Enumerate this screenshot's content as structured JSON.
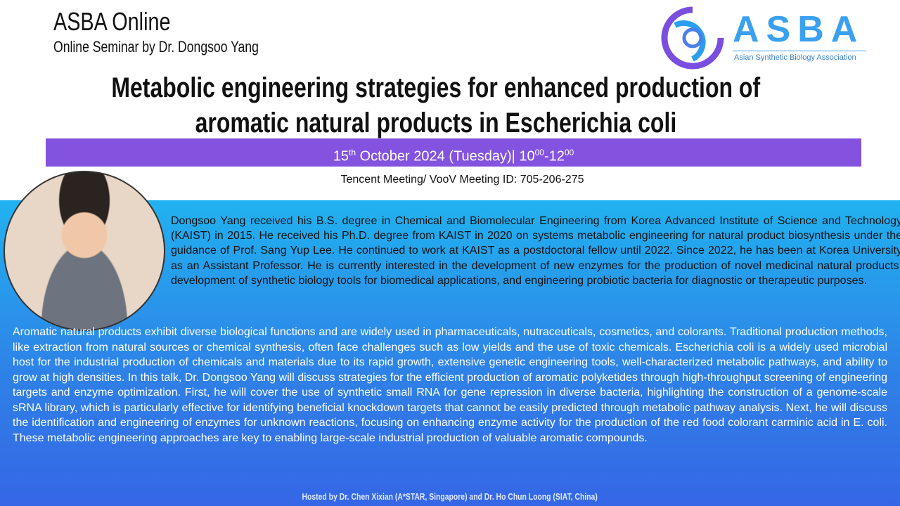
{
  "header": {
    "org": "ASBA Online",
    "subtitle": "Online Seminar by Dr. Dongsoo Yang"
  },
  "logo": {
    "word": "ASBA",
    "tagline": "Asian Synthetic Biology Association"
  },
  "title": {
    "line1": "Metabolic engineering strategies for enhanced production of",
    "line2": "aromatic natural products in Escherichia coli"
  },
  "date": {
    "day": "15",
    "day_suffix": "th",
    "rest": " October 2024 (Tuesday)| ",
    "start": "10",
    "start_sup": "00",
    "dash": "-",
    "end": "12",
    "end_sup": "00"
  },
  "meeting": "Tencent Meeting/ VooV Meeting ID: 705-206-275",
  "bio": "Dongsoo Yang received his B.S. degree in Chemical and Biomolecular Engineering from Korea Advanced Institute of Science and Technology (KAIST) in 2015. He received his Ph.D. degree from KAIST in 2020 on systems metabolic engineering for natural product biosynthesis under the guidance of Prof. Sang Yup Lee. He continued to work at KAIST as a postdoctoral fellow until 2022. Since 2022, he has been at Korea University as an Assistant Professor. He is currently interested in the development of new enzymes for the production of novel medicinal natural products, development of synthetic biology tools for biomedical applications, and engineering probiotic bacteria for diagnostic or therapeutic purposes.",
  "abstract": "Aromatic natural products exhibit diverse biological functions and are widely used in pharmaceuticals, nutraceuticals, cosmetics, and colorants.  Traditional production methods, like extraction from natural sources or chemical synthesis, often face challenges such as low yields and the use of toxic chemicals. Escherichia coli is a widely used microbial host for the industrial production of chemicals and materials due to its rapid growth, extensive genetic engineering tools, well-characterized metabolic pathways, and ability to grow at high densities.  In this talk, Dr. Dongsoo Yang will discuss strategies for the efficient production of aromatic polyketides through high-throughput screening of engineering targets and enzyme optimization.  First, he will cover the use of synthetic small RNA for gene repression in diverse bacteria, highlighting the construction of a genome-scale sRNA library, which is particularly effective for identifying beneficial knockdown targets that cannot be easily predicted through metabolic pathway analysis.  Next, he will discuss the identification and engineering of enzymes for unknown reactions, focusing on enhancing enzyme activity for the production of the red food colorant carminic acid in E. coli.  These metabolic engineering approaches are key to enabling large-scale industrial production of valuable aromatic compounds.",
  "host": "Hosted by Dr.  Chen Xixian (A*STAR, Singapore) and  Dr. Ho Chun Loong (SIAT, China)",
  "colors": {
    "band": "#8353e0",
    "gradient_top": "#21b2f0",
    "gradient_bottom": "#3566e6"
  }
}
